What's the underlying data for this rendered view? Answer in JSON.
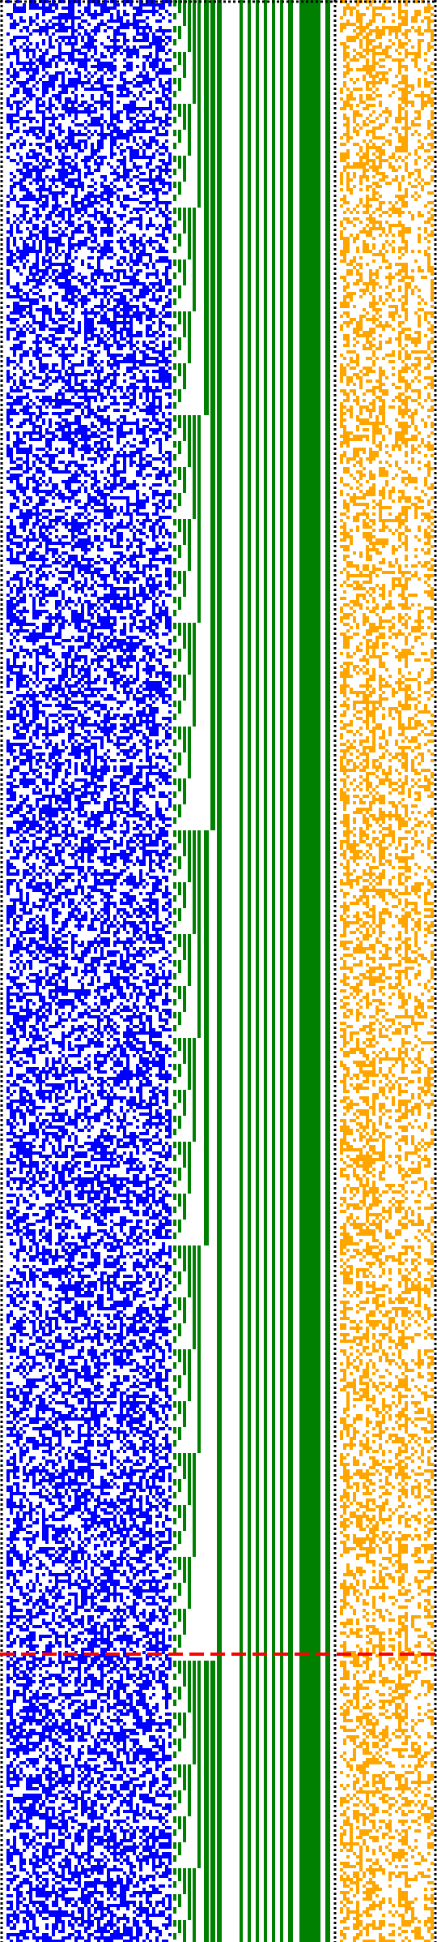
{
  "visualization": {
    "kind": "bit-pattern plot",
    "text": [],
    "colors": {
      "background": "#ffffff",
      "dotted_border": "#000000",
      "random_bits": "#0000ff",
      "counter_bits": "#008000",
      "secondary_bits": "#ffa500",
      "marker_line": "#ff0000"
    },
    "panels": [
      "random-bits-panel",
      "counter-staircase-panel",
      "secondary-bits-panel"
    ],
    "marker": {
      "style": "dashed",
      "color_key": "marker_line"
    }
  }
}
